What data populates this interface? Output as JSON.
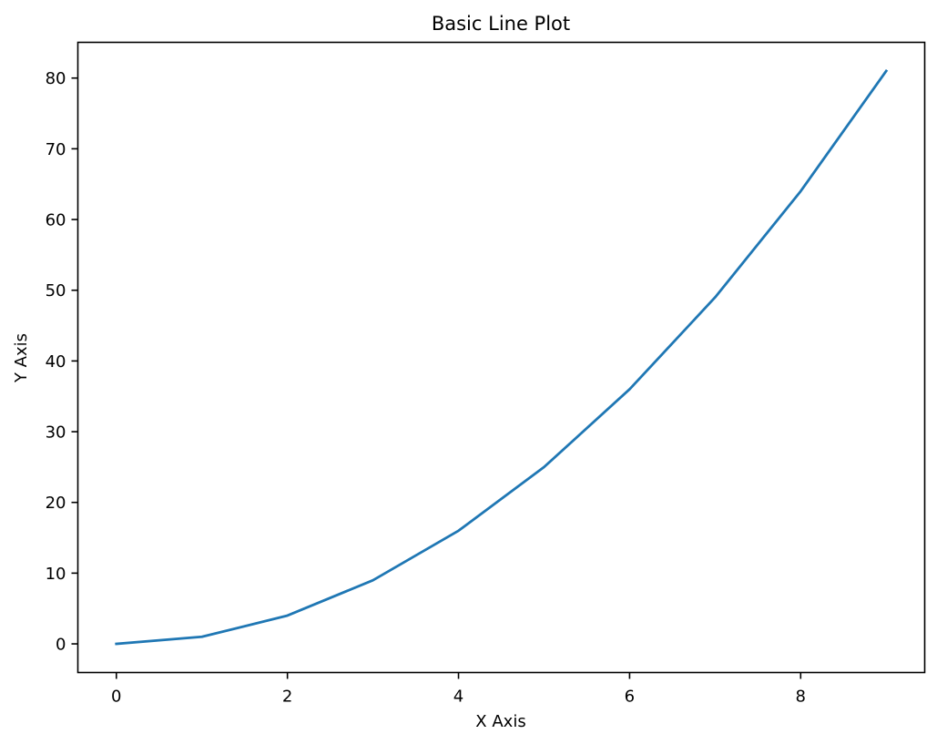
{
  "chart_data": {
    "type": "line",
    "title": "Basic Line Plot",
    "xlabel": "X Axis",
    "ylabel": "Y Axis",
    "x": [
      0,
      1,
      2,
      3,
      4,
      5,
      6,
      7,
      8,
      9
    ],
    "series": [
      {
        "values": [
          0,
          1,
          4,
          9,
          16,
          25,
          36,
          49,
          64,
          81
        ],
        "color": "#1f77b4"
      }
    ],
    "xlim": [
      -0.45,
      9.45
    ],
    "ylim": [
      -4.05,
      85.05
    ],
    "xticks": [
      0,
      2,
      4,
      6,
      8
    ],
    "yticks": [
      0,
      10,
      20,
      30,
      40,
      50,
      60,
      70,
      80
    ],
    "grid": false,
    "legend": "none"
  }
}
